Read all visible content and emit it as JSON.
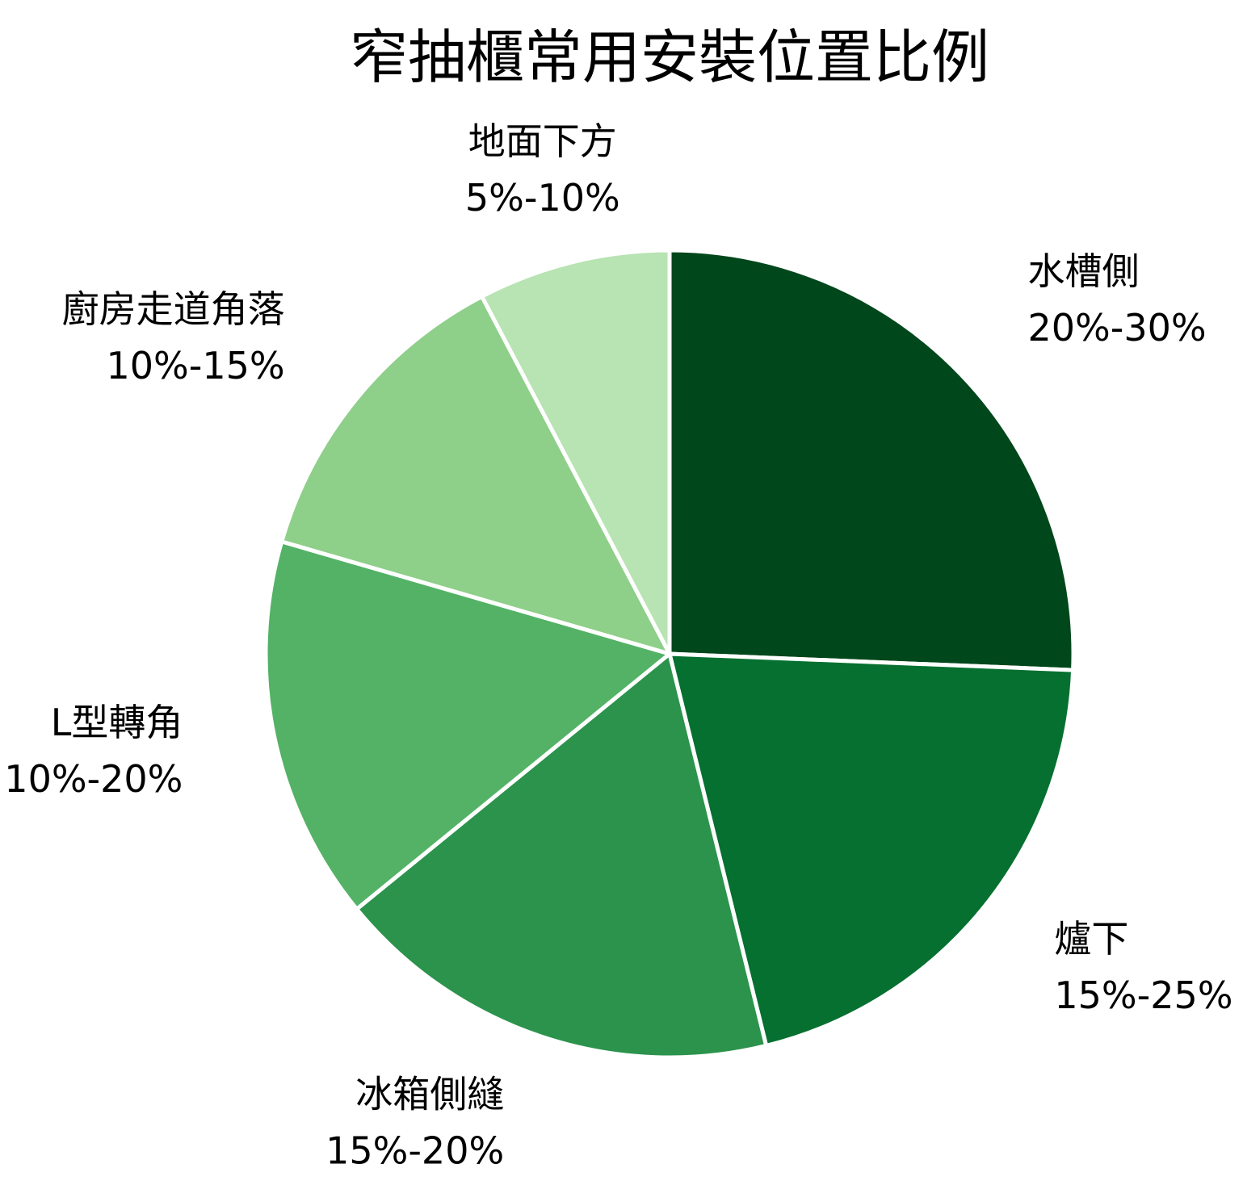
{
  "chart_data": {
    "type": "pie",
    "title": "窄抽櫃常用安裝位置比例",
    "slices": [
      {
        "name": "水槽側",
        "range_label": "20%-30%",
        "value": 25,
        "color": "#00471b"
      },
      {
        "name": "爐下",
        "range_label": "15%-25%",
        "value": 20,
        "color": "#057030"
      },
      {
        "name": "冰箱側縫",
        "range_label": "15%-20%",
        "value": 17.5,
        "color": "#2b934c"
      },
      {
        "name": "L型轉角",
        "range_label": "10%-20%",
        "value": 15,
        "color": "#53b266"
      },
      {
        "name": "廚房走道角落",
        "range_label": "10%-15%",
        "value": 12.5,
        "color": "#8ecf89"
      },
      {
        "name": "地面下方",
        "range_label": "5%-10%",
        "value": 7.5,
        "color": "#b8e3b3"
      }
    ],
    "start_angle": "12 o'clock",
    "direction": "clockwise",
    "slice_border_color": "#ffffff"
  }
}
